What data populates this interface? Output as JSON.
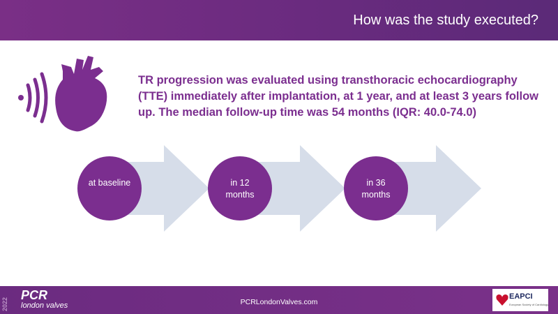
{
  "header": {
    "title": "How was the study executed?"
  },
  "body": {
    "text": "TR progression was evaluated using transthoracic echocardiography (TTE) immediately after implantation, at 1 year, and at least 3 years follow up. The median follow-up time was 54 months (IQR: 40.0-74.0)"
  },
  "steps": [
    {
      "label": "at baseline"
    },
    {
      "label": "in 12 months"
    },
    {
      "label": "in 36 months"
    }
  ],
  "footer": {
    "year": "2022",
    "brand": "PCR",
    "subbrand": "london valves",
    "url": "PCRLondonValves.com",
    "logo": "EAPCI",
    "logo_sub": "European Society of Cardiology"
  }
}
